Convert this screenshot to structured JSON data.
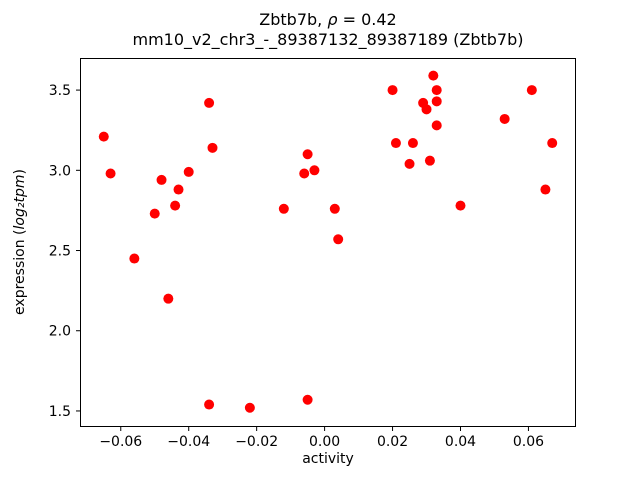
{
  "chart_data": {
    "type": "scatter",
    "title": {
      "prefix": "Zbtb7b, ",
      "rho": "ρ",
      "suffix": " = 0.42"
    },
    "subtitle": "mm10_v2_chr3_-_89387132_89387189 (Zbtb7b)",
    "xlabel": "activity",
    "ylabel_prefix": "expression (",
    "ylabel_math": "log₂tpm",
    "ylabel_suffix": ")",
    "xlim": [
      -0.072,
      0.074
    ],
    "ylim": [
      1.4,
      3.7
    ],
    "xticks": [
      -0.06,
      -0.04,
      -0.02,
      0.0,
      0.02,
      0.04,
      0.06
    ],
    "xtick_labels": [
      "−0.06",
      "−0.04",
      "−0.02",
      "0.00",
      "0.02",
      "0.04",
      "0.06"
    ],
    "yticks": [
      1.5,
      2.0,
      2.5,
      3.0,
      3.5
    ],
    "ytick_labels": [
      "1.5",
      "2.0",
      "2.5",
      "3.0",
      "3.5"
    ],
    "marker_color": "#ff0000",
    "points": [
      [
        -0.065,
        3.21
      ],
      [
        -0.063,
        2.98
      ],
      [
        -0.056,
        2.45
      ],
      [
        -0.05,
        2.73
      ],
      [
        -0.048,
        2.94
      ],
      [
        -0.046,
        2.2
      ],
      [
        -0.044,
        2.78
      ],
      [
        -0.043,
        2.88
      ],
      [
        -0.04,
        2.99
      ],
      [
        -0.034,
        3.42
      ],
      [
        -0.033,
        3.14
      ],
      [
        -0.034,
        1.54
      ],
      [
        -0.022,
        1.52
      ],
      [
        -0.012,
        2.76
      ],
      [
        -0.006,
        2.98
      ],
      [
        -0.005,
        3.1
      ],
      [
        -0.003,
        3.0
      ],
      [
        -0.005,
        1.57
      ],
      [
        0.003,
        2.76
      ],
      [
        0.004,
        2.57
      ],
      [
        0.02,
        3.5
      ],
      [
        0.021,
        3.17
      ],
      [
        0.025,
        3.04
      ],
      [
        0.026,
        3.17
      ],
      [
        0.029,
        3.42
      ],
      [
        0.03,
        3.38
      ],
      [
        0.032,
        3.59
      ],
      [
        0.033,
        3.5
      ],
      [
        0.033,
        3.43
      ],
      [
        0.033,
        3.28
      ],
      [
        0.031,
        3.06
      ],
      [
        0.04,
        2.78
      ],
      [
        0.053,
        3.32
      ],
      [
        0.061,
        3.5
      ],
      [
        0.065,
        2.88
      ],
      [
        0.067,
        3.17
      ]
    ]
  }
}
